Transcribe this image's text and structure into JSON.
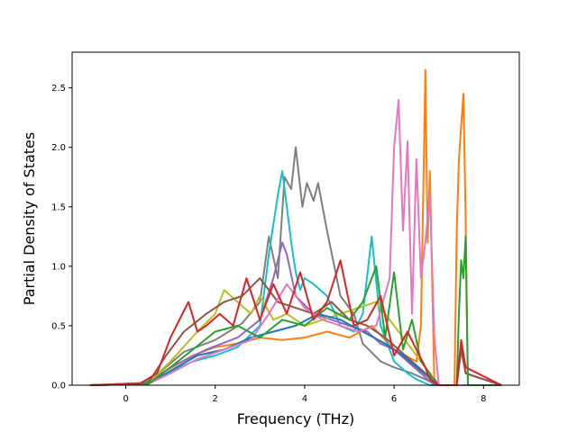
{
  "chart_data": {
    "type": "line",
    "title": "",
    "xlabel": "Frequency (THz)",
    "ylabel": "Partial Density of States",
    "xlim": [
      -1.2,
      8.8
    ],
    "ylim": [
      0.0,
      2.8
    ],
    "xticks": [
      0,
      2,
      4,
      6,
      8
    ],
    "xtick_labels": [
      "0",
      "2",
      "4",
      "6",
      "8"
    ],
    "yticks": [
      0.0,
      0.5,
      1.0,
      1.5,
      2.0,
      2.5
    ],
    "ytick_labels": [
      "0.0",
      "0.5",
      "1.0",
      "1.5",
      "2.0",
      "2.5"
    ],
    "grid": false,
    "legend": "none",
    "series": [
      {
        "color": "#7f7f7f",
        "x": [
          -0.8,
          0.3,
          0.8,
          1.3,
          2.0,
          2.6,
          3.0,
          3.2,
          3.4,
          3.55,
          3.7,
          3.8,
          3.95,
          4.05,
          4.2,
          4.3,
          4.5,
          4.8,
          5.1,
          5.3,
          5.7,
          6.0,
          6.4,
          6.7,
          6.85,
          7.0,
          7.4,
          7.5,
          7.6,
          8.4
        ],
        "y": [
          0,
          0.01,
          0.12,
          0.28,
          0.38,
          0.52,
          0.7,
          1.25,
          0.9,
          1.75,
          1.65,
          2.0,
          1.5,
          1.7,
          1.55,
          1.7,
          1.3,
          0.75,
          0.6,
          0.35,
          0.2,
          0.15,
          0.1,
          0.05,
          0.02,
          0.0,
          0.0,
          0.35,
          0.1,
          0.0
        ]
      },
      {
        "color": "#ff7f0e",
        "x": [
          -0.8,
          0.3,
          0.8,
          1.5,
          2.0,
          2.5,
          3.0,
          3.5,
          4.0,
          4.5,
          5.0,
          5.5,
          6.0,
          6.5,
          6.6,
          6.7,
          6.75,
          6.8,
          6.85,
          6.9,
          7.0,
          7.35,
          7.4,
          7.45,
          7.55,
          7.6,
          7.65,
          8.4
        ],
        "y": [
          0,
          0.01,
          0.1,
          0.25,
          0.32,
          0.35,
          0.4,
          0.38,
          0.4,
          0.45,
          0.4,
          0.5,
          0.3,
          0.2,
          0.5,
          2.65,
          1.2,
          1.8,
          0.9,
          0.0,
          0.0,
          0.0,
          1.3,
          1.9,
          2.45,
          1.4,
          0.0,
          0.0
        ]
      },
      {
        "color": "#17becf",
        "x": [
          -0.8,
          0.3,
          0.8,
          1.5,
          2.0,
          2.5,
          3.0,
          3.2,
          3.4,
          3.5,
          3.6,
          3.7,
          3.8,
          3.9,
          4.0,
          4.2,
          4.5,
          4.8,
          5.1,
          5.3,
          5.5,
          5.7,
          6.0,
          6.3,
          6.5,
          6.8,
          7.0,
          8.4
        ],
        "y": [
          0,
          0.01,
          0.08,
          0.2,
          0.25,
          0.32,
          0.5,
          1.1,
          1.6,
          1.8,
          1.5,
          1.2,
          0.95,
          0.8,
          0.9,
          0.85,
          0.75,
          0.5,
          0.45,
          0.6,
          1.25,
          0.5,
          0.2,
          0.1,
          0.05,
          0.0,
          0.0,
          0.0
        ]
      },
      {
        "color": "#9467bd",
        "x": [
          -0.8,
          0.5,
          1.0,
          1.8,
          2.5,
          3.0,
          3.3,
          3.5,
          3.6,
          3.8,
          4.2,
          4.6,
          5.0,
          5.4,
          5.7,
          6.0,
          6.3,
          6.6,
          6.9,
          7.0,
          8.4
        ],
        "y": [
          0,
          0.02,
          0.15,
          0.3,
          0.4,
          0.55,
          0.9,
          1.2,
          1.1,
          0.75,
          0.6,
          0.55,
          0.5,
          0.45,
          0.35,
          0.3,
          0.2,
          0.1,
          0.0,
          0.0,
          0.0
        ]
      },
      {
        "color": "#bcbd22",
        "x": [
          -0.8,
          0.5,
          1.0,
          1.6,
          2.0,
          2.2,
          2.5,
          2.8,
          3.0,
          3.3,
          3.6,
          4.0,
          4.4,
          4.8,
          5.2,
          5.6,
          6.0,
          6.4,
          6.7,
          6.9,
          7.0,
          8.4
        ],
        "y": [
          0,
          0.02,
          0.2,
          0.45,
          0.6,
          0.8,
          0.7,
          0.6,
          0.75,
          0.55,
          0.6,
          0.5,
          0.55,
          0.6,
          0.65,
          0.7,
          0.5,
          0.3,
          0.15,
          0.05,
          0.0,
          0.0
        ]
      },
      {
        "color": "#8c564b",
        "x": [
          -0.8,
          0.5,
          0.9,
          1.3,
          1.8,
          2.2,
          2.6,
          3.0,
          3.4,
          3.8,
          4.2,
          4.6,
          5.0,
          5.4,
          5.8,
          6.1,
          6.4,
          6.7,
          6.9,
          7.0,
          7.4,
          7.5,
          7.6,
          8.4
        ],
        "y": [
          0,
          0.02,
          0.25,
          0.45,
          0.6,
          0.7,
          0.75,
          0.9,
          0.7,
          0.65,
          0.6,
          0.7,
          0.55,
          0.5,
          0.4,
          0.3,
          0.2,
          0.1,
          0.05,
          0.0,
          0.0,
          0.3,
          0.1,
          0.0
        ]
      },
      {
        "color": "#1f77b4",
        "x": [
          -0.8,
          0.5,
          1.0,
          1.6,
          2.2,
          2.8,
          3.3,
          3.8,
          4.3,
          4.8,
          5.3,
          5.8,
          6.2,
          6.6,
          6.9,
          7.0,
          8.4
        ],
        "y": [
          0,
          0.01,
          0.12,
          0.25,
          0.3,
          0.4,
          0.45,
          0.5,
          0.6,
          0.55,
          0.45,
          0.35,
          0.25,
          0.12,
          0.03,
          0.0,
          0.0
        ]
      },
      {
        "color": "#e377c2",
        "x": [
          -0.8,
          0.5,
          1.0,
          1.6,
          2.2,
          2.8,
          3.2,
          3.6,
          4.0,
          4.4,
          4.8,
          5.2,
          5.6,
          5.9,
          6.0,
          6.1,
          6.2,
          6.3,
          6.4,
          6.5,
          6.6,
          6.7,
          6.8,
          6.9,
          7.0,
          8.4
        ],
        "y": [
          0,
          0.01,
          0.1,
          0.22,
          0.3,
          0.38,
          0.6,
          0.85,
          0.65,
          0.55,
          0.5,
          0.45,
          0.5,
          0.9,
          2.0,
          2.4,
          1.3,
          2.05,
          0.6,
          1.9,
          0.9,
          1.2,
          1.6,
          0.4,
          0.0,
          0.0
        ]
      },
      {
        "color": "#2ca02c",
        "x": [
          -0.8,
          0.5,
          1.0,
          1.5,
          2.0,
          2.5,
          3.0,
          3.5,
          4.0,
          4.5,
          5.0,
          5.3,
          5.6,
          5.8,
          6.0,
          6.2,
          6.4,
          6.6,
          6.8,
          6.9,
          7.0,
          7.4,
          7.45,
          7.5,
          7.55,
          7.6,
          7.65,
          8.4
        ],
        "y": [
          0,
          0.01,
          0.15,
          0.3,
          0.45,
          0.5,
          0.4,
          0.55,
          0.5,
          0.65,
          0.55,
          0.7,
          1.0,
          0.4,
          0.95,
          0.3,
          0.55,
          0.2,
          0.1,
          0.02,
          0.0,
          0.0,
          0.6,
          1.05,
          0.9,
          1.25,
          0.0,
          0.0
        ]
      },
      {
        "color": "#d62728",
        "x": [
          -0.8,
          0.3,
          0.7,
          1.0,
          1.2,
          1.4,
          1.6,
          1.8,
          2.1,
          2.4,
          2.7,
          3.0,
          3.3,
          3.6,
          3.9,
          4.2,
          4.5,
          4.8,
          5.1,
          5.4,
          5.7,
          6.0,
          6.3,
          6.5,
          6.7,
          6.8,
          6.9,
          7.0,
          7.4,
          7.5,
          7.6,
          8.4
        ],
        "y": [
          0,
          0.01,
          0.1,
          0.4,
          0.55,
          0.7,
          0.45,
          0.5,
          0.6,
          0.5,
          0.9,
          0.55,
          0.85,
          0.6,
          0.95,
          0.55,
          0.7,
          1.05,
          0.5,
          0.55,
          0.75,
          0.25,
          0.45,
          0.3,
          0.15,
          0.05,
          0.02,
          0.0,
          0.0,
          0.38,
          0.15,
          0.0
        ]
      }
    ]
  }
}
